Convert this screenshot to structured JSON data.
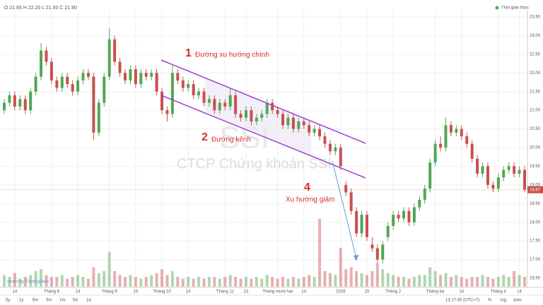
{
  "chart_data": {
    "type": "candlestick",
    "info": "O 21.65 H 22.20 L 21.50 C 21.90",
    "realtime": "Thời gian thực",
    "watermark_symbol": "SSI",
    "watermark_name": "CTCP Chứng khoán SSI",
    "annotations": [
      {
        "number": "1",
        "text": "Đường xu hướng chính"
      },
      {
        "number": "2",
        "text": "Đường kênh"
      },
      {
        "number": "4",
        "text": "Xu hướng giảm"
      }
    ],
    "branding": "charts by TradingView",
    "ranges": [
      "5y",
      "1y",
      "6m",
      "3m",
      "1m",
      "5d",
      "1d"
    ],
    "time": "13:17:30 (UTC+7)",
    "scale_options": [
      "%",
      "log",
      "auto"
    ],
    "last_price": 18.87,
    "up_color": "#53a653",
    "down_color": "#c94f4f",
    "ylim": [
      16.5,
      23.5
    ],
    "yticks": [
      {
        "value": 16.5,
        "label": "16.50"
      },
      {
        "value": 17,
        "label": "17.00"
      },
      {
        "value": 17.5,
        "label": "17.50"
      },
      {
        "value": 18,
        "label": "18.00"
      },
      {
        "value": 18.5,
        "label": "18.50"
      },
      {
        "value": 19,
        "label": "19.00"
      },
      {
        "value": 19.5,
        "label": "19.50"
      },
      {
        "value": 20,
        "label": "20.00"
      },
      {
        "value": 20.5,
        "label": "20.50"
      },
      {
        "value": 21,
        "label": "21.00"
      },
      {
        "value": 21.5,
        "label": "21.50"
      },
      {
        "value": 22,
        "label": "22.00"
      },
      {
        "value": 22.5,
        "label": "22.50"
      },
      {
        "value": 23,
        "label": "23.00"
      },
      {
        "value": 23.5,
        "label": "23.50"
      }
    ],
    "y2lim": [
      0,
      40
    ],
    "grid": true,
    "categories": [
      null,
      null,
      "14",
      null,
      null,
      null,
      null,
      null,
      null,
      "Tháng 8",
      null,
      null,
      null,
      null,
      "14",
      null,
      null,
      null,
      null,
      null,
      "Tháng 9",
      null,
      null,
      null,
      null,
      "15",
      null,
      null,
      null,
      null,
      "Tháng 10",
      null,
      null,
      null,
      null,
      "14",
      null,
      null,
      null,
      null,
      null,
      null,
      "Tháng 11",
      null,
      null,
      null,
      "13",
      null,
      null,
      null,
      null,
      null,
      "Tháng mười hai",
      null,
      null,
      null,
      null,
      "14",
      null,
      null,
      null,
      null,
      null,
      null,
      "2016",
      null,
      null,
      null,
      null,
      "15",
      null,
      null,
      null,
      null,
      "Tháng 2",
      null,
      null,
      null,
      null,
      null,
      null,
      null,
      "Tháng ba",
      null,
      null,
      null,
      null,
      "14",
      null,
      null,
      null,
      null,
      null,
      null,
      "Tháng 4",
      null,
      null,
      null,
      "14",
      null
    ],
    "ohlc": [
      [
        21.0,
        21.3,
        20.9,
        21.2
      ],
      [
        21.2,
        21.5,
        21.1,
        21.4
      ],
      [
        21.4,
        21.5,
        21.0,
        21.1
      ],
      [
        21.1,
        21.4,
        21.0,
        21.3
      ],
      [
        21.3,
        21.4,
        20.9,
        21.0
      ],
      [
        21.0,
        21.6,
        20.9,
        21.5
      ],
      [
        21.5,
        22.0,
        21.4,
        21.9
      ],
      [
        21.9,
        22.8,
        21.8,
        22.6
      ],
      [
        22.6,
        22.7,
        22.2,
        22.3
      ],
      [
        22.3,
        22.4,
        21.7,
        21.8
      ],
      [
        21.8,
        21.9,
        21.5,
        21.6
      ],
      [
        21.6,
        22.0,
        21.5,
        21.9
      ],
      [
        21.9,
        22.0,
        21.6,
        21.7
      ],
      [
        21.7,
        21.8,
        21.4,
        21.5
      ],
      [
        21.5,
        21.9,
        21.4,
        21.8
      ],
      [
        21.8,
        22.1,
        21.7,
        22.0
      ],
      [
        22.0,
        22.1,
        21.8,
        21.9
      ],
      [
        21.9,
        22.0,
        20.2,
        20.4
      ],
      [
        20.4,
        21.3,
        20.3,
        21.2
      ],
      [
        21.2,
        22.0,
        21.1,
        21.9
      ],
      [
        21.9,
        23.2,
        21.8,
        22.9
      ],
      [
        22.9,
        23.0,
        22.2,
        22.3
      ],
      [
        22.3,
        22.4,
        21.9,
        22.0
      ],
      [
        22.0,
        22.1,
        21.7,
        21.8
      ],
      [
        21.8,
        22.2,
        21.7,
        22.1
      ],
      [
        22.1,
        22.2,
        21.6,
        21.7
      ],
      [
        21.7,
        22.1,
        21.6,
        22.0
      ],
      [
        22.0,
        22.1,
        21.8,
        21.9
      ],
      [
        21.9,
        22.1,
        21.8,
        22.0
      ],
      [
        22.0,
        22.1,
        21.4,
        21.5
      ],
      [
        21.5,
        21.6,
        20.9,
        21.0
      ],
      [
        21.0,
        21.1,
        20.7,
        20.9
      ],
      [
        20.9,
        22.2,
        20.8,
        22.0
      ],
      [
        22.0,
        22.1,
        21.7,
        21.8
      ],
      [
        21.8,
        21.9,
        21.5,
        21.6
      ],
      [
        21.6,
        21.8,
        21.5,
        21.7
      ],
      [
        21.7,
        21.8,
        21.3,
        21.4
      ],
      [
        21.4,
        21.6,
        21.3,
        21.5
      ],
      [
        21.5,
        21.6,
        21.1,
        21.2
      ],
      [
        21.2,
        21.4,
        21.1,
        21.3
      ],
      [
        21.3,
        21.4,
        20.9,
        21.0
      ],
      [
        21.0,
        21.3,
        20.9,
        21.2
      ],
      [
        21.2,
        21.3,
        21.0,
        21.1
      ],
      [
        21.1,
        21.6,
        21.0,
        21.4
      ],
      [
        21.4,
        21.5,
        20.8,
        20.9
      ],
      [
        20.9,
        21.0,
        20.7,
        20.8
      ],
      [
        20.8,
        21.1,
        20.7,
        21.0
      ],
      [
        21.0,
        21.1,
        20.6,
        20.7
      ],
      [
        20.7,
        20.9,
        20.6,
        20.8
      ],
      [
        20.8,
        21.0,
        20.7,
        20.9
      ],
      [
        20.9,
        21.3,
        20.8,
        21.2
      ],
      [
        21.2,
        21.3,
        20.9,
        21.0
      ],
      [
        21.0,
        21.1,
        20.8,
        20.9
      ],
      [
        20.9,
        21.0,
        20.5,
        20.6
      ],
      [
        20.6,
        20.9,
        20.5,
        20.8
      ],
      [
        20.8,
        20.9,
        20.4,
        20.5
      ],
      [
        20.5,
        20.8,
        20.4,
        20.7
      ],
      [
        20.7,
        20.8,
        20.5,
        20.6
      ],
      [
        20.6,
        20.7,
        20.3,
        20.4
      ],
      [
        20.4,
        20.6,
        20.3,
        20.5
      ],
      [
        20.5,
        20.6,
        20.2,
        20.3
      ],
      [
        20.3,
        20.4,
        20.0,
        20.1
      ],
      [
        20.1,
        20.2,
        19.8,
        19.9
      ],
      [
        19.9,
        20.1,
        19.8,
        20.0
      ],
      [
        20.0,
        20.1,
        19.4,
        19.5
      ],
      [
        19.0,
        19.1,
        18.7,
        18.8
      ],
      [
        18.8,
        18.9,
        18.2,
        18.3
      ],
      [
        18.3,
        18.4,
        17.6,
        17.7
      ],
      [
        17.7,
        18.3,
        17.6,
        18.2
      ],
      [
        18.2,
        18.3,
        17.5,
        17.6
      ],
      [
        17.4,
        17.6,
        17.2,
        17.3
      ],
      [
        17.3,
        17.4,
        16.9,
        17.0
      ],
      [
        17.0,
        17.5,
        16.9,
        17.4
      ],
      [
        17.6,
        18.0,
        17.5,
        17.9
      ],
      [
        17.9,
        18.3,
        17.8,
        18.2
      ],
      [
        18.2,
        18.3,
        18.0,
        18.1
      ],
      [
        18.1,
        18.4,
        18.0,
        18.3
      ],
      [
        18.3,
        18.4,
        17.9,
        18.0
      ],
      [
        18.0,
        18.5,
        17.9,
        18.4
      ],
      [
        18.4,
        18.7,
        18.3,
        18.6
      ],
      [
        18.6,
        19.0,
        18.5,
        18.9
      ],
      [
        18.9,
        19.7,
        18.8,
        19.6
      ],
      [
        19.6,
        20.2,
        19.5,
        20.1
      ],
      [
        20.1,
        20.3,
        19.9,
        20.0
      ],
      [
        20.0,
        20.8,
        19.9,
        20.6
      ],
      [
        20.6,
        20.7,
        20.3,
        20.4
      ],
      [
        20.4,
        20.6,
        20.3,
        20.5
      ],
      [
        20.5,
        20.6,
        20.2,
        20.3
      ],
      [
        20.3,
        20.4,
        20.0,
        20.1
      ],
      [
        20.1,
        20.2,
        19.6,
        19.7
      ],
      [
        19.7,
        19.8,
        19.2,
        19.3
      ],
      [
        19.3,
        19.6,
        19.2,
        19.5
      ],
      [
        19.5,
        19.6,
        18.9,
        19.0
      ],
      [
        19.0,
        19.1,
        18.8,
        18.9
      ],
      [
        18.9,
        19.3,
        18.8,
        19.2
      ],
      [
        19.2,
        19.5,
        19.1,
        19.4
      ],
      [
        19.4,
        19.6,
        19.3,
        19.5
      ],
      [
        19.5,
        19.6,
        19.2,
        19.3
      ],
      [
        19.3,
        19.5,
        19.2,
        19.4
      ],
      [
        19.4,
        19.5,
        18.8,
        18.87
      ]
    ],
    "volume": [
      6,
      5,
      7,
      4,
      5,
      6,
      8,
      9,
      6,
      5,
      5,
      6,
      4,
      5,
      6,
      5,
      4,
      10,
      7,
      8,
      18,
      8,
      6,
      5,
      6,
      5,
      4,
      5,
      6,
      7,
      9,
      6,
      8,
      5,
      4,
      5,
      4,
      5,
      4,
      5,
      5,
      4,
      5,
      6,
      5,
      4,
      5,
      4,
      5,
      4,
      6,
      5,
      4,
      5,
      4,
      5,
      4,
      5,
      6,
      5,
      35,
      8,
      7,
      6,
      20,
      9,
      10,
      8,
      7,
      6,
      8,
      12,
      9,
      7,
      6,
      5,
      5,
      4,
      5,
      6,
      6,
      10,
      8,
      6,
      7,
      5,
      6,
      5,
      4,
      5,
      5,
      6,
      5,
      4,
      5,
      6,
      5,
      8,
      6,
      5
    ]
  }
}
